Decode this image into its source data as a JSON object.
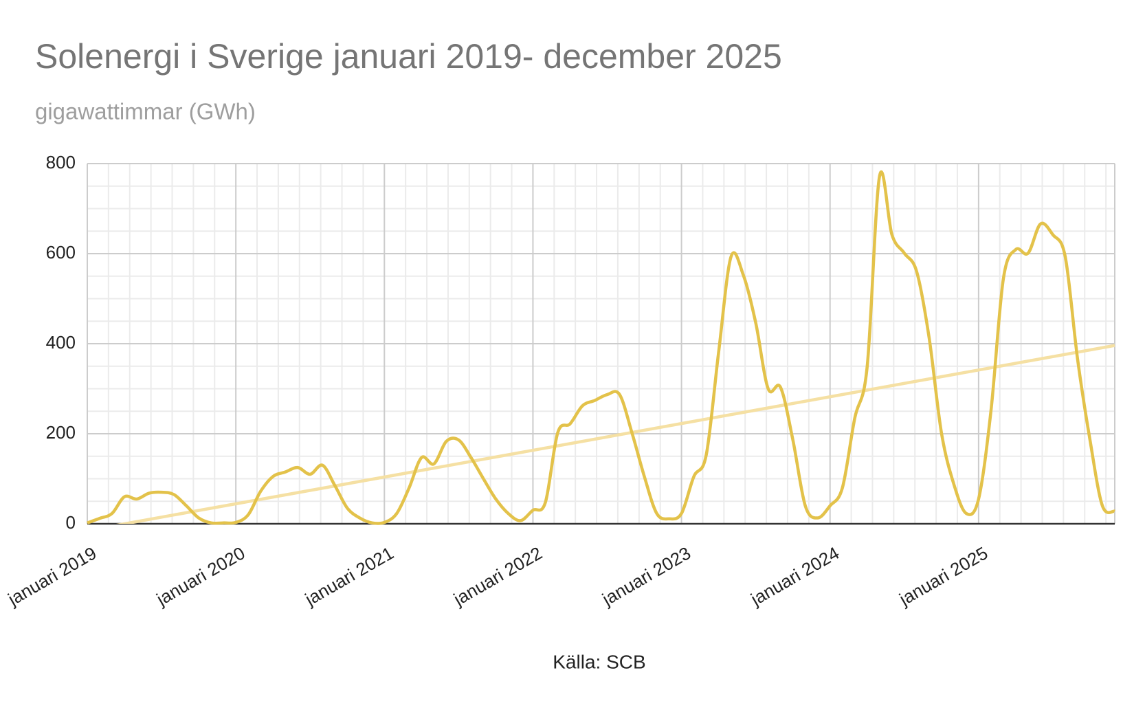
{
  "chart_data": {
    "type": "line",
    "title": "Solenergi i Sverige januari 2019- december 2025",
    "subtitle": "gigawattimmar (GWh)",
    "source": "Källa: SCB",
    "categories": [
      "januari 2019",
      null,
      null,
      null,
      null,
      null,
      null,
      null,
      null,
      null,
      null,
      null,
      "januari 2020",
      null,
      null,
      null,
      null,
      null,
      null,
      null,
      null,
      null,
      null,
      null,
      "januari 2021",
      null,
      null,
      null,
      null,
      null,
      null,
      null,
      null,
      null,
      null,
      null,
      "januari 2022",
      null,
      null,
      null,
      null,
      null,
      null,
      null,
      null,
      null,
      null,
      null,
      "januari 2023",
      null,
      null,
      null,
      null,
      null,
      null,
      null,
      null,
      null,
      null,
      null,
      "januari 2024",
      null,
      null,
      null,
      null,
      null,
      null,
      null,
      null,
      null,
      null,
      null,
      "januari 2025",
      null,
      null,
      null,
      null,
      null,
      null,
      null,
      null,
      null,
      null,
      null
    ],
    "series": [
      {
        "name": "Solenergi",
        "color": "#e3c24a",
        "values": [
          2,
          12,
          23,
          60,
          55,
          68,
          70,
          65,
          40,
          13,
          2,
          2,
          3,
          20,
          72,
          105,
          115,
          125,
          110,
          130,
          85,
          35,
          13,
          2,
          3,
          23,
          80,
          147,
          133,
          183,
          186,
          147,
          100,
          55,
          23,
          7,
          30,
          47,
          202,
          222,
          262,
          274,
          287,
          287,
          202,
          105,
          23,
          11,
          23,
          105,
          153,
          381,
          593,
          552,
          446,
          300,
          303,
          186,
          40,
          13,
          40,
          80,
          235,
          349,
          772,
          642,
          601,
          560,
          414,
          202,
          88,
          23,
          55,
          251,
          544,
          609,
          601,
          666,
          642,
          593,
          365,
          186,
          40,
          28
        ]
      }
    ],
    "trendline": {
      "color": "#f5e0a3",
      "values": [
        -15,
        396
      ]
    },
    "ylim": [
      0,
      800
    ],
    "yticks": [
      0,
      200,
      400,
      600,
      800
    ],
    "grid": true
  }
}
